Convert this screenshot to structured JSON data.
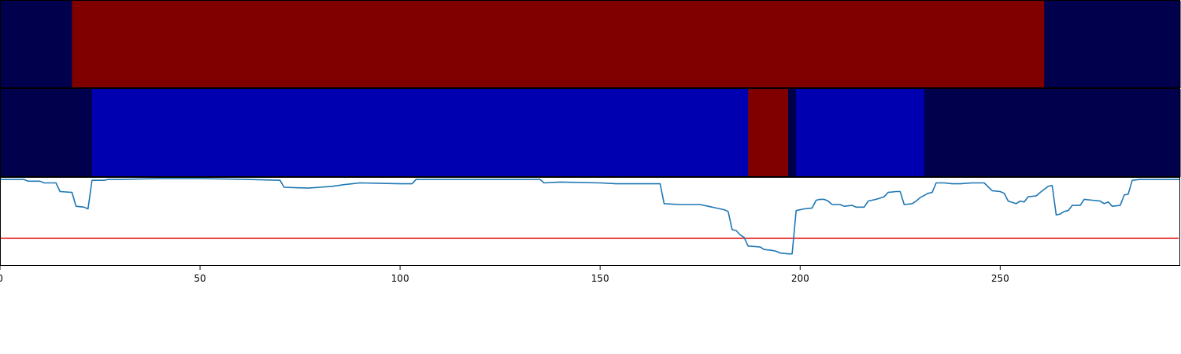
{
  "chart_data": {
    "type": "heatmap",
    "xlim": [
      0,
      295
    ],
    "x_ticks": [
      0,
      50,
      100,
      150,
      200,
      250
    ],
    "tick_labels": [
      "0",
      "50",
      "100",
      "150",
      "200",
      "250"
    ],
    "colors": {
      "dark_navy": "#00004c",
      "navy": "#00004a",
      "blue": "#0000b0",
      "dark_red": "#800000",
      "line": "#1f77b4",
      "threshold": "#e31a1c"
    },
    "row1_segments": [
      {
        "start": 0,
        "end": 18,
        "color": "dark_navy"
      },
      {
        "start": 18,
        "end": 261,
        "color": "dark_red"
      },
      {
        "start": 261,
        "end": 295,
        "color": "dark_navy"
      }
    ],
    "row2_segments": [
      {
        "start": 0,
        "end": 23,
        "color": "dark_navy"
      },
      {
        "start": 23,
        "end": 187,
        "color": "blue"
      },
      {
        "start": 187,
        "end": 197,
        "color": "dark_red"
      },
      {
        "start": 197,
        "end": 199,
        "color": "navy"
      },
      {
        "start": 199,
        "end": 231,
        "color": "blue"
      },
      {
        "start": 231,
        "end": 295,
        "color": "dark_navy"
      }
    ],
    "line_ylim": [
      0,
      1
    ],
    "threshold": 0.31,
    "line_points": [
      [
        0,
        0.99
      ],
      [
        6,
        0.99
      ],
      [
        7,
        0.97
      ],
      [
        10,
        0.97
      ],
      [
        11,
        0.95
      ],
      [
        14,
        0.95
      ],
      [
        15,
        0.85
      ],
      [
        18,
        0.84
      ],
      [
        19,
        0.68
      ],
      [
        21,
        0.67
      ],
      [
        22,
        0.65
      ],
      [
        23,
        0.98
      ],
      [
        26,
        0.98
      ],
      [
        27,
        0.99
      ],
      [
        30,
        0.99
      ],
      [
        40,
        1.0
      ],
      [
        50,
        1.0
      ],
      [
        62,
        0.99
      ],
      [
        70,
        0.98
      ],
      [
        71,
        0.9
      ],
      [
        77,
        0.89
      ],
      [
        80,
        0.9
      ],
      [
        83,
        0.91
      ],
      [
        86,
        0.93
      ],
      [
        90,
        0.95
      ],
      [
        100,
        0.94
      ],
      [
        103,
        0.94
      ],
      [
        104,
        0.99
      ],
      [
        110,
        0.99
      ],
      [
        120,
        0.99
      ],
      [
        130,
        0.99
      ],
      [
        135,
        0.99
      ],
      [
        136,
        0.95
      ],
      [
        140,
        0.96
      ],
      [
        150,
        0.95
      ],
      [
        154,
        0.94
      ],
      [
        160,
        0.94
      ],
      [
        165,
        0.94
      ],
      [
        166,
        0.71
      ],
      [
        170,
        0.7
      ],
      [
        175,
        0.7
      ],
      [
        177,
        0.68
      ],
      [
        179,
        0.66
      ],
      [
        181,
        0.64
      ],
      [
        182,
        0.62
      ],
      [
        183,
        0.41
      ],
      [
        184,
        0.4
      ],
      [
        185,
        0.35
      ],
      [
        186,
        0.32
      ],
      [
        187,
        0.22
      ],
      [
        190,
        0.21
      ],
      [
        191,
        0.18
      ],
      [
        193,
        0.17
      ],
      [
        194,
        0.16
      ],
      [
        195,
        0.14
      ],
      [
        197,
        0.13
      ],
      [
        198,
        0.13
      ],
      [
        199,
        0.63
      ],
      [
        201,
        0.65
      ],
      [
        203,
        0.66
      ],
      [
        204,
        0.75
      ],
      [
        205,
        0.76
      ],
      [
        206,
        0.76
      ],
      [
        207,
        0.74
      ],
      [
        208,
        0.7
      ],
      [
        210,
        0.7
      ],
      [
        211,
        0.68
      ],
      [
        213,
        0.69
      ],
      [
        214,
        0.67
      ],
      [
        216,
        0.67
      ],
      [
        217,
        0.74
      ],
      [
        219,
        0.76
      ],
      [
        221,
        0.79
      ],
      [
        222,
        0.84
      ],
      [
        224,
        0.85
      ],
      [
        225,
        0.85
      ],
      [
        226,
        0.7
      ],
      [
        228,
        0.71
      ],
      [
        229,
        0.74
      ],
      [
        230,
        0.78
      ],
      [
        232,
        0.83
      ],
      [
        233,
        0.84
      ],
      [
        234,
        0.95
      ],
      [
        236,
        0.95
      ],
      [
        238,
        0.94
      ],
      [
        240,
        0.94
      ],
      [
        243,
        0.95
      ],
      [
        246,
        0.95
      ],
      [
        248,
        0.86
      ],
      [
        250,
        0.85
      ],
      [
        251,
        0.83
      ],
      [
        252,
        0.74
      ],
      [
        254,
        0.71
      ],
      [
        255,
        0.74
      ],
      [
        256,
        0.73
      ],
      [
        257,
        0.79
      ],
      [
        259,
        0.8
      ],
      [
        260,
        0.84
      ],
      [
        262,
        0.91
      ],
      [
        263,
        0.92
      ],
      [
        264,
        0.58
      ],
      [
        265,
        0.59
      ],
      [
        266,
        0.62
      ],
      [
        267,
        0.63
      ],
      [
        268,
        0.69
      ],
      [
        270,
        0.69
      ],
      [
        271,
        0.76
      ],
      [
        273,
        0.75
      ],
      [
        275,
        0.74
      ],
      [
        276,
        0.71
      ],
      [
        277,
        0.73
      ],
      [
        278,
        0.68
      ],
      [
        280,
        0.69
      ],
      [
        281,
        0.81
      ],
      [
        282,
        0.82
      ],
      [
        283,
        0.98
      ],
      [
        285,
        0.99
      ],
      [
        287,
        0.99
      ],
      [
        290,
        0.99
      ],
      [
        295,
        0.99
      ]
    ]
  }
}
